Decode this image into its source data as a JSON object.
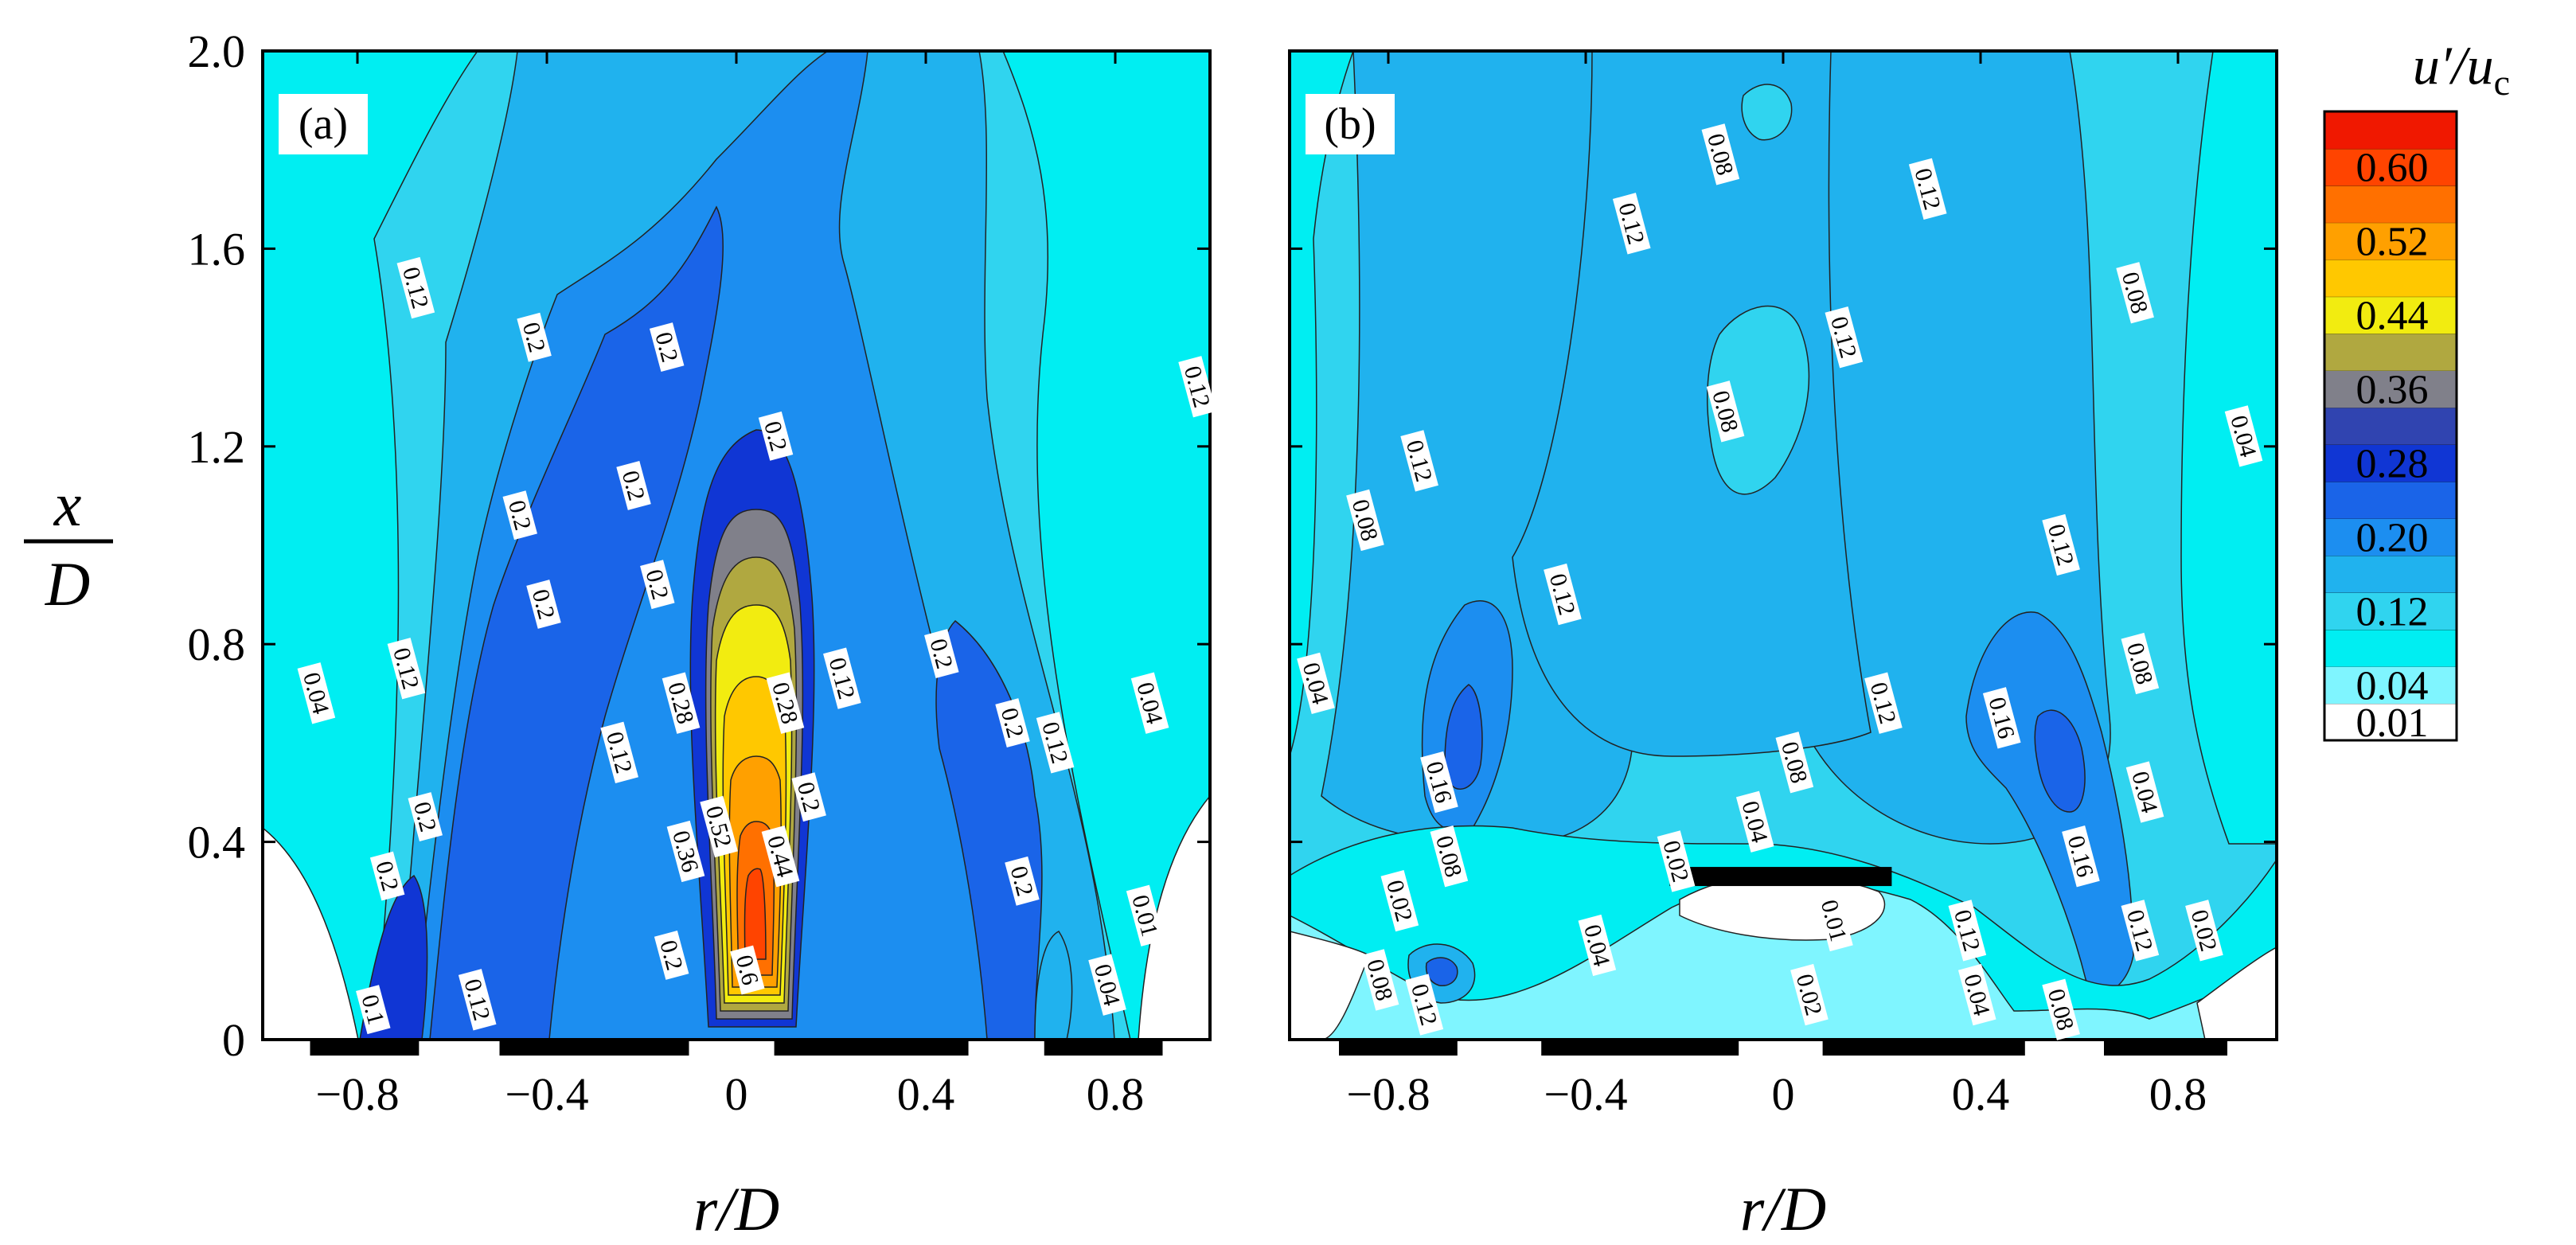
{
  "chart_data": {
    "type": "heatmap",
    "subtype": "filled-contour",
    "ylabel": {
      "num": "x",
      "den": "D"
    },
    "xlabel": "r/D",
    "xlim": [
      -1.0,
      1.0
    ],
    "ylim": [
      0.0,
      2.0
    ],
    "x_ticks": [
      "−0.8",
      "−0.4",
      "0",
      "0.4",
      "0.8"
    ],
    "x_tick_values": [
      -0.8,
      -0.4,
      0,
      0.4,
      0.8
    ],
    "y_ticks": [
      "0",
      "0.4",
      "0.8",
      "1.2",
      "1.6",
      "2.0"
    ],
    "y_tick_values": [
      0,
      0.4,
      0.8,
      1.2,
      1.6,
      2.0
    ],
    "colorbar": {
      "title_num": "u′",
      "title_slash": "/",
      "title_den": "u",
      "title_sub": "c",
      "levels": [
        0.01,
        0.04,
        0.08,
        0.12,
        0.16,
        0.2,
        0.24,
        0.28,
        0.32,
        0.36,
        0.4,
        0.44,
        0.48,
        0.52,
        0.56,
        0.6,
        0.64
      ],
      "colors": [
        "#ffffff",
        "#7ff5ff",
        "#00eef2",
        "#30d4ef",
        "#20b2ee",
        "#1c8ef0",
        "#1a64e8",
        "#1036d4",
        "#3044b0",
        "#80808a",
        "#b0a840",
        "#f2ec10",
        "#ffc800",
        "#ffa000",
        "#ff7000",
        "#ff4400",
        "#f01800"
      ],
      "tick_labels": [
        "0.01",
        "0.04",
        "0.12",
        "0.20",
        "0.28",
        "0.36",
        "0.44",
        "0.52",
        "0.60"
      ]
    },
    "panels": [
      {
        "tag": "(a)",
        "nozzle_segments_rD": [
          [
            -0.9,
            -0.67
          ],
          [
            -0.5,
            -0.1
          ],
          [
            0.08,
            0.49
          ],
          [
            0.65,
            0.9
          ]
        ],
        "contour_labels": [
          {
            "v": "0.12",
            "r": -0.68,
            "x": 1.52
          },
          {
            "v": "0.2",
            "r": -0.43,
            "x": 1.42
          },
          {
            "v": "0.2",
            "r": -0.15,
            "x": 1.4
          },
          {
            "v": "0.2",
            "r": 0.08,
            "x": 1.22
          },
          {
            "v": "0.2",
            "r": -0.22,
            "x": 1.12
          },
          {
            "v": "0.2",
            "r": -0.46,
            "x": 1.06
          },
          {
            "v": "0.2",
            "r": -0.17,
            "x": 0.92
          },
          {
            "v": "0.2",
            "r": -0.41,
            "x": 0.88
          },
          {
            "v": "0.12",
            "r": -0.7,
            "x": 0.75
          },
          {
            "v": "0.04",
            "r": -0.89,
            "x": 0.7
          },
          {
            "v": "0.28",
            "r": -0.12,
            "x": 0.68
          },
          {
            "v": "0.28",
            "r": 0.1,
            "x": 0.68
          },
          {
            "v": "0.12",
            "r": 0.22,
            "x": 0.73
          },
          {
            "v": "0.2",
            "r": 0.43,
            "x": 0.78
          },
          {
            "v": "0.12",
            "r": 1.28,
            "x": 1.32
          },
          {
            "v": "0.2",
            "r": 0.58,
            "x": 0.64
          },
          {
            "v": "0.12",
            "r": 0.67,
            "x": 0.6
          },
          {
            "v": "0.04",
            "r": 0.87,
            "x": 0.68
          },
          {
            "v": "0.12",
            "r": -0.25,
            "x": 0.58
          },
          {
            "v": "0.52",
            "r": -0.04,
            "x": 0.43
          },
          {
            "v": "0.2",
            "r": 0.15,
            "x": 0.49
          },
          {
            "v": "0.44",
            "r": 0.09,
            "x": 0.37
          },
          {
            "v": "0.36",
            "r": -0.11,
            "x": 0.38
          },
          {
            "v": "0.2",
            "r": -0.66,
            "x": 0.45
          },
          {
            "v": "0.2",
            "r": -0.74,
            "x": 0.33
          },
          {
            "v": "0.2",
            "r": 0.6,
            "x": 0.32
          },
          {
            "v": "0.2",
            "r": -0.14,
            "x": 0.17
          },
          {
            "v": "0.6",
            "r": 0.02,
            "x": 0.14
          },
          {
            "v": "0.01",
            "r": 0.86,
            "x": 0.25
          },
          {
            "v": "0.04",
            "r": 0.78,
            "x": 0.11
          },
          {
            "v": "0.12",
            "r": -0.55,
            "x": 0.08
          },
          {
            "v": "0.1",
            "r": -0.77,
            "x": 0.06
          }
        ]
      },
      {
        "tag": "(b)",
        "nozzle_segments_rD": [
          [
            -0.9,
            -0.66
          ],
          [
            -0.49,
            -0.09
          ],
          [
            0.08,
            0.49
          ],
          [
            0.65,
            0.9
          ]
        ],
        "centre_bar_rD": [
          -0.23,
          0.22
        ],
        "contour_labels": [
          {
            "v": "0.08",
            "r": -0.13,
            "x": 1.79
          },
          {
            "v": "0.12",
            "r": 0.29,
            "x": 1.72
          },
          {
            "v": "0.12",
            "r": -0.31,
            "x": 1.65
          },
          {
            "v": "0.08",
            "r": 0.71,
            "x": 1.51
          },
          {
            "v": "0.12",
            "r": 0.12,
            "x": 1.42
          },
          {
            "v": "0.08",
            "r": -0.12,
            "x": 1.27
          },
          {
            "v": "0.04",
            "r": 0.93,
            "x": 1.22
          },
          {
            "v": "0.12",
            "r": -0.74,
            "x": 1.17
          },
          {
            "v": "0.08",
            "r": -0.85,
            "x": 1.05
          },
          {
            "v": "0.12",
            "r": 0.56,
            "x": 1.0
          },
          {
            "v": "0.12",
            "r": -0.45,
            "x": 0.9
          },
          {
            "v": "0.08",
            "r": 0.72,
            "x": 0.76
          },
          {
            "v": "0.04",
            "r": -0.95,
            "x": 0.72
          },
          {
            "v": "0.12",
            "r": 0.2,
            "x": 0.68
          },
          {
            "v": "0.16",
            "r": 0.44,
            "x": 0.65
          },
          {
            "v": "0.08",
            "r": 0.02,
            "x": 0.56
          },
          {
            "v": "0.16",
            "r": -0.7,
            "x": 0.52
          },
          {
            "v": "0.04",
            "r": 0.73,
            "x": 0.5
          },
          {
            "v": "0.04",
            "r": -0.06,
            "x": 0.44
          },
          {
            "v": "0.08",
            "r": -0.68,
            "x": 0.37
          },
          {
            "v": "0.02",
            "r": -0.22,
            "x": 0.36
          },
          {
            "v": "0.16",
            "r": 0.6,
            "x": 0.37
          },
          {
            "v": "0.02",
            "r": -0.78,
            "x": 0.28
          },
          {
            "v": "0.01",
            "r": 0.1,
            "x": 0.24
          },
          {
            "v": "0.04",
            "r": -0.38,
            "x": 0.19
          },
          {
            "v": "0.12",
            "r": 0.37,
            "x": 0.22
          },
          {
            "v": "0.12",
            "r": 0.72,
            "x": 0.22
          },
          {
            "v": "0.02",
            "r": 0.85,
            "x": 0.22
          },
          {
            "v": "0.08",
            "r": -0.82,
            "x": 0.12
          },
          {
            "v": "0.02",
            "r": 0.05,
            "x": 0.09
          },
          {
            "v": "0.04",
            "r": 0.39,
            "x": 0.09
          },
          {
            "v": "0.12",
            "r": -0.73,
            "x": 0.07
          },
          {
            "v": "0.08",
            "r": 0.56,
            "x": 0.06
          }
        ]
      }
    ]
  }
}
